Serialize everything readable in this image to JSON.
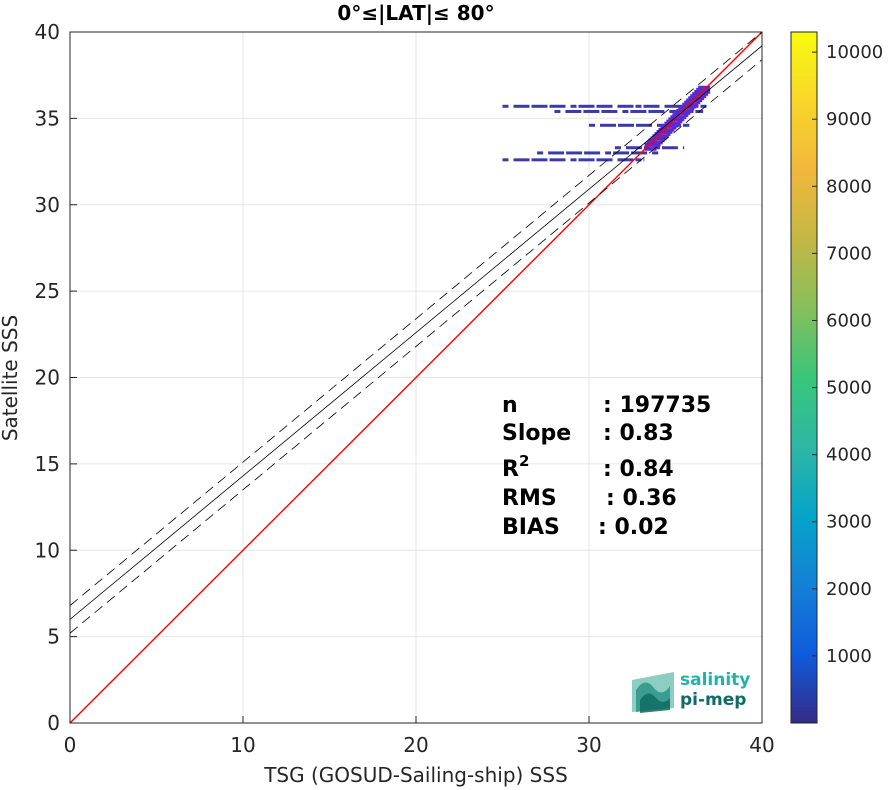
{
  "chart_data": {
    "type": "heatmap",
    "title": "0°≤|LAT|≤ 80°",
    "xlabel": "TSG (GOSUD-Sailing-ship) SSS",
    "ylabel": "Satellite SSS",
    "xlim": [
      0,
      40
    ],
    "ylim": [
      0,
      40
    ],
    "x_ticks": [
      "0",
      "10",
      "20",
      "30",
      "40"
    ],
    "y_ticks": [
      "0",
      "5",
      "10",
      "15",
      "20",
      "25",
      "30",
      "35",
      "40"
    ],
    "grid": true,
    "colorbar": {
      "range": [
        0,
        10300
      ],
      "ticks": [
        "1000",
        "2000",
        "3000",
        "4000",
        "5000",
        "6000",
        "7000",
        "8000",
        "9000",
        "10000"
      ]
    },
    "reference_line": {
      "name": "1:1",
      "color": "#ff0000",
      "x": [
        0,
        40
      ],
      "y": [
        0,
        40
      ]
    },
    "fit_line": {
      "color": "#000000",
      "x": [
        0,
        40
      ],
      "y": [
        6.0,
        39.2
      ]
    },
    "confidence_bounds": [
      {
        "x": [
          0,
          40
        ],
        "y": [
          6.8,
          40.0
        ]
      },
      {
        "x": [
          0,
          40
        ],
        "y": [
          5.2,
          38.4
        ]
      }
    ],
    "density_bands": [
      {
        "x_range": [
          25.0,
          36.8
        ],
        "y": 35.7,
        "density": "low"
      },
      {
        "x_range": [
          28.0,
          36.6
        ],
        "y": 35.4,
        "density": "low"
      },
      {
        "x_range": [
          30.0,
          35.8
        ],
        "y": 34.6,
        "density": "low"
      },
      {
        "x_range": [
          31.5,
          35.5
        ],
        "y": 33.3,
        "density": "low"
      },
      {
        "x_range": [
          27.0,
          34.0
        ],
        "y": 33.0,
        "density": "low"
      },
      {
        "x_range": [
          25.0,
          33.2
        ],
        "y": 32.6,
        "density": "low"
      },
      {
        "x_range": [
          33.5,
          36.6
        ],
        "y_range": [
          33.3,
          36.6
        ],
        "density": "medium"
      }
    ],
    "stats": [
      {
        "label": "n",
        "value": ": 197735"
      },
      {
        "label": "Slope",
        "value": ": 0.83"
      },
      {
        "label": "R",
        "sup": "2",
        "value": ": 0.84"
      },
      {
        "label": "RMS",
        "value": ": 0.36"
      },
      {
        "label": "BIAS",
        "value": ": 0.02"
      }
    ]
  },
  "logo": {
    "line1": "salinity",
    "line2": "pi-mep",
    "color1": "#1fb5a6",
    "color2": "#0f6b63"
  }
}
